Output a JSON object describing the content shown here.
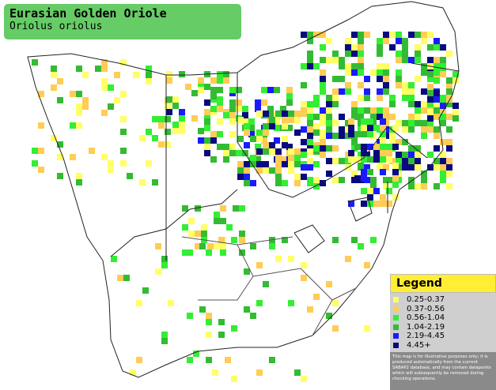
{
  "header": {
    "title": "Eurasian Golden Oriole",
    "subtitle": "Oriolus oriolus"
  },
  "legend": {
    "title": "Legend",
    "items": [
      {
        "label": "0.25-0.37",
        "color": "#ffff66"
      },
      {
        "label": "0.37-0.56",
        "color": "#ffcc55"
      },
      {
        "label": "0.56-1.04",
        "color": "#33ee33"
      },
      {
        "label": "1.04-2.19",
        "color": "#33bb33"
      },
      {
        "label": "2.19-4.45",
        "color": "#1a1aff"
      },
      {
        "label": "4.45+",
        "color": "#0a0a80"
      }
    ],
    "disclaimer": [
      "This map is for illustrative purposes only; it is",
      "produced automatically from the current",
      "SABAP2 database, and may contain datapoints",
      "which will subsequently be removed during",
      "checking operations."
    ]
  }
}
